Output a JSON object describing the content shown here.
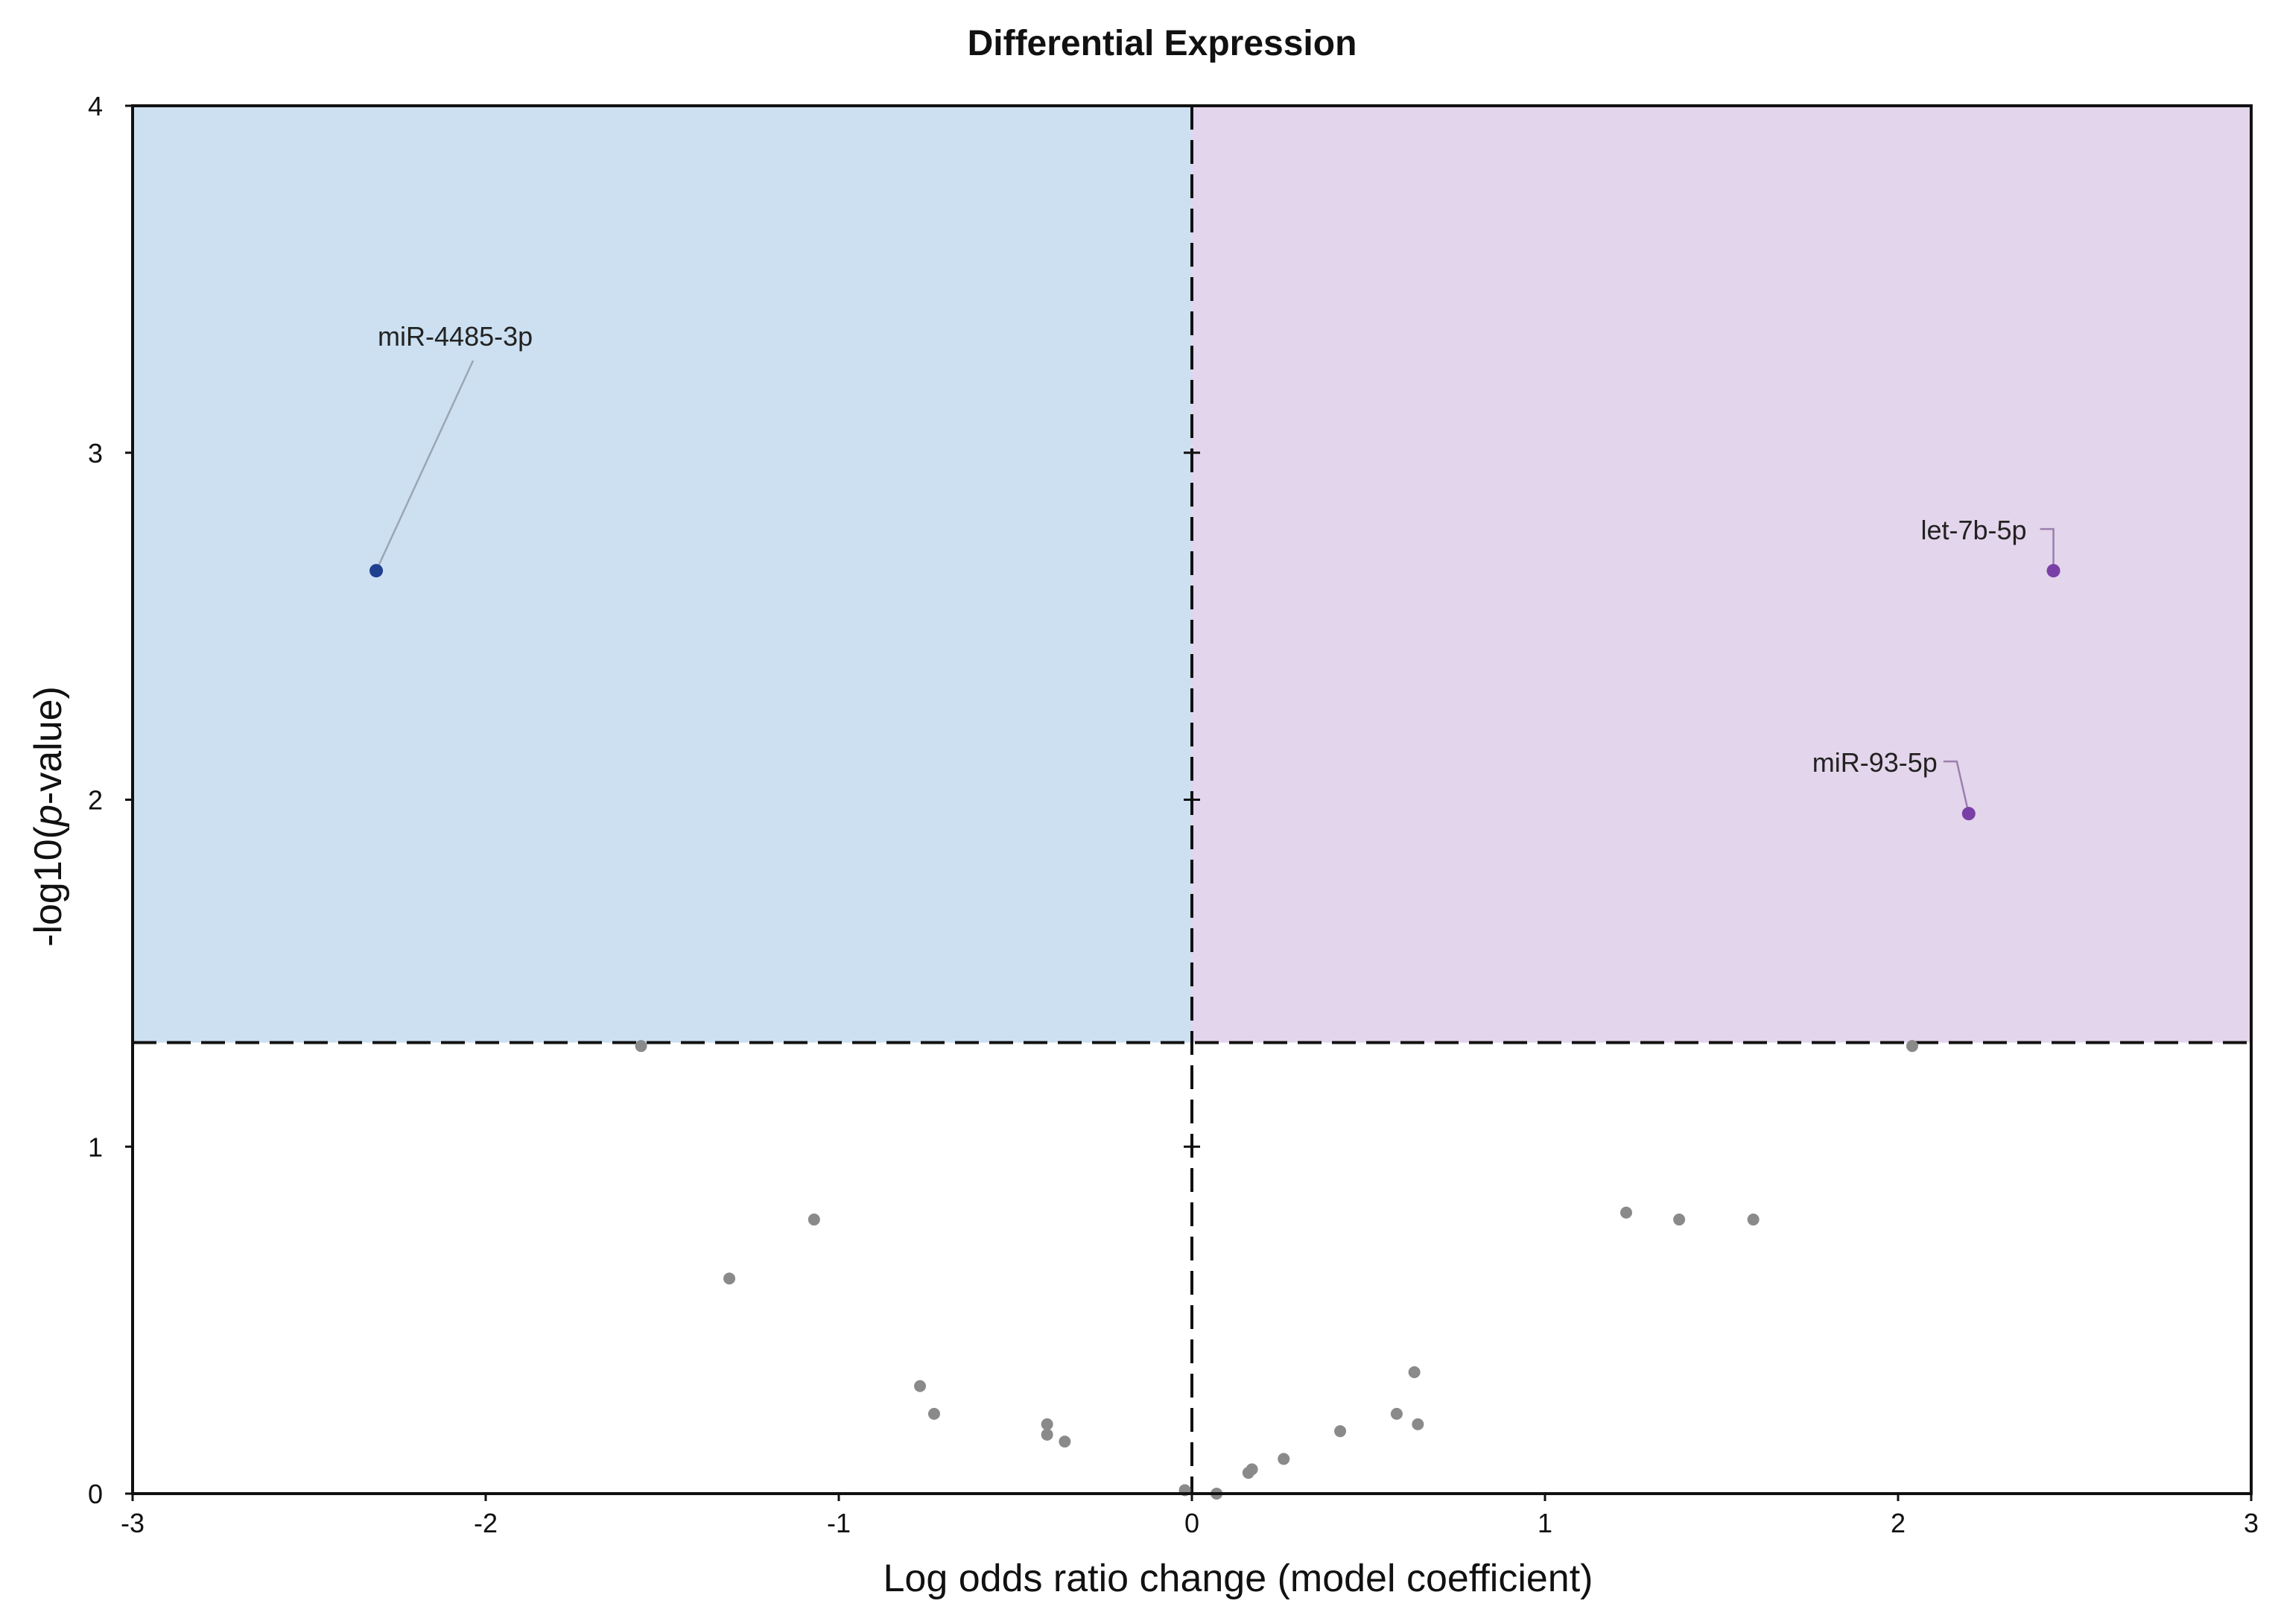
{
  "chart_data": {
    "type": "scatter",
    "title": "Differential Expression",
    "xlabel": "Log odds ratio change (model coefficient)",
    "ylabel_prefix": "-log10(",
    "ylabel_italic": "p",
    "ylabel_suffix": "-value)",
    "xlim": [
      -3,
      3
    ],
    "ylim": [
      0,
      4
    ],
    "xticks": [
      -3,
      -2,
      -1,
      0,
      1,
      2,
      3
    ],
    "yticks": [
      0,
      1,
      2,
      3,
      4
    ],
    "grid": false,
    "significance_threshold_y": 1.3,
    "colors": {
      "down_region": "#cce0f1",
      "up_region": "#e3d5eb",
      "nonsig_point": "#8a8a8a",
      "down_point": "#1f3f8f",
      "up_point": "#7a3fa6",
      "frame": "#111111"
    },
    "points": [
      {
        "x": -2.31,
        "y": 2.66,
        "group": "down",
        "label": "miR-4485-3p"
      },
      {
        "x": 2.44,
        "y": 2.66,
        "group": "up",
        "label": "let-7b-5p"
      },
      {
        "x": 2.2,
        "y": 1.96,
        "group": "up",
        "label": "miR-93-5p"
      },
      {
        "x": -1.56,
        "y": 1.29,
        "group": "ns"
      },
      {
        "x": 2.04,
        "y": 1.29,
        "group": "ns"
      },
      {
        "x": -1.07,
        "y": 0.79,
        "group": "ns"
      },
      {
        "x": -1.31,
        "y": 0.62,
        "group": "ns"
      },
      {
        "x": 1.23,
        "y": 0.81,
        "group": "ns"
      },
      {
        "x": 1.38,
        "y": 0.79,
        "group": "ns"
      },
      {
        "x": 1.59,
        "y": 0.79,
        "group": "ns"
      },
      {
        "x": -0.77,
        "y": 0.31,
        "group": "ns"
      },
      {
        "x": -0.73,
        "y": 0.23,
        "group": "ns"
      },
      {
        "x": -0.41,
        "y": 0.2,
        "group": "ns"
      },
      {
        "x": -0.41,
        "y": 0.17,
        "group": "ns"
      },
      {
        "x": -0.36,
        "y": 0.15,
        "group": "ns"
      },
      {
        "x": 0.63,
        "y": 0.35,
        "group": "ns"
      },
      {
        "x": 0.58,
        "y": 0.23,
        "group": "ns"
      },
      {
        "x": 0.64,
        "y": 0.2,
        "group": "ns"
      },
      {
        "x": 0.42,
        "y": 0.18,
        "group": "ns"
      },
      {
        "x": 0.26,
        "y": 0.1,
        "group": "ns"
      },
      {
        "x": 0.17,
        "y": 0.07,
        "group": "ns"
      },
      {
        "x": 0.16,
        "y": 0.06,
        "group": "ns"
      },
      {
        "x": -0.02,
        "y": 0.01,
        "group": "ns"
      },
      {
        "x": 0.07,
        "y": 0.0,
        "group": "ns"
      }
    ]
  }
}
